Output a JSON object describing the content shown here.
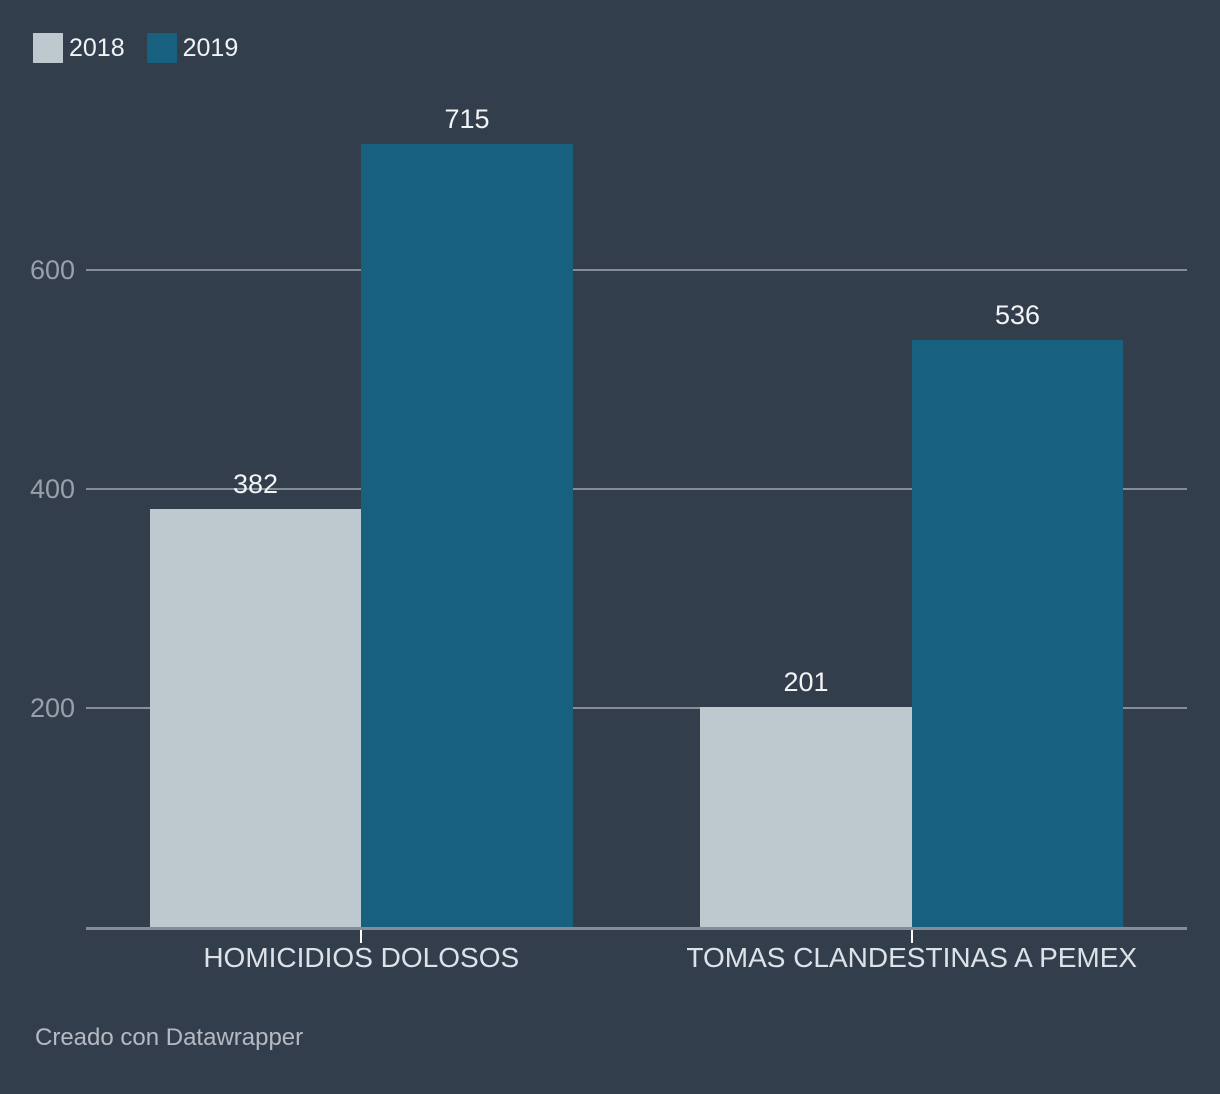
{
  "legend": {
    "items": [
      {
        "label": "2018",
        "color": "#bdc9ce"
      },
      {
        "label": "2019",
        "color": "#17617e"
      }
    ]
  },
  "chart_data": {
    "type": "bar",
    "subtype": "grouped-vertical-columns",
    "title": "",
    "xlabel": "",
    "ylabel": "",
    "categories": [
      "HOMICIDIOS DOLOSOS",
      "TOMAS CLANDESTINAS A PEMEX"
    ],
    "series": [
      {
        "name": "2018",
        "color": "#bdc9ce",
        "values": [
          382,
          201
        ]
      },
      {
        "name": "2019",
        "color": "#17617e",
        "values": [
          715,
          536
        ]
      }
    ],
    "y_ticks": [
      200,
      400,
      600
    ],
    "ylim": [
      0,
      810
    ],
    "grid": true,
    "legend_position": "top-left",
    "value_labels": true
  },
  "footer": {
    "credit": "Creado con Datawrapper"
  },
  "colors": {
    "background": "#333e4d",
    "grid_line": "#878d97",
    "axis_line": "#878d97",
    "axis_tick_mark": "#ffffff",
    "y_tick_label": "#9aa0aa",
    "value_label": "#f2f3f5",
    "category_label": "#dde2e8",
    "legend_label": "#f0f2f4",
    "footer_text": "#b5bac2",
    "series_2018": "#bdc9ce",
    "series_2019": "#17617e"
  }
}
